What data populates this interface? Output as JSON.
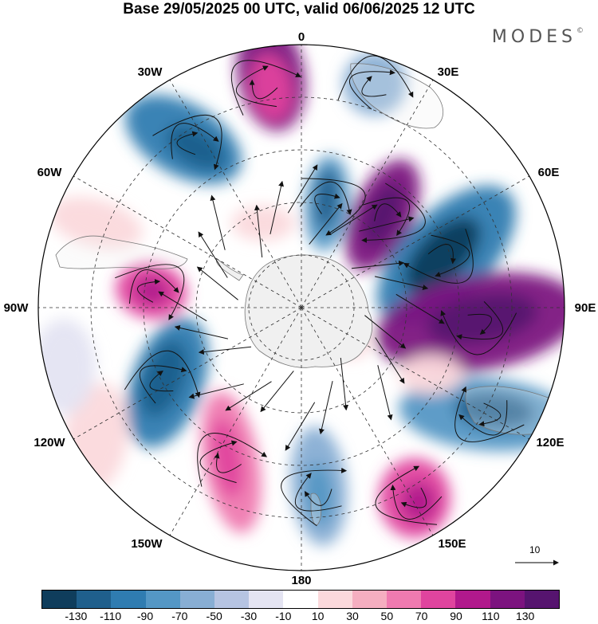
{
  "title": "Base 29/05/2025 00 UTC, valid 06/06/2025 12 UTC",
  "brand": "MODES",
  "brand_mark": "©",
  "longitude_labels": [
    "0",
    "30E",
    "60E",
    "90E",
    "120E",
    "150E",
    "180",
    "150W",
    "120W",
    "90W",
    "60W",
    "30W"
  ],
  "reference_vector_label": "10",
  "colorbar": {
    "colors": [
      "#0f3d5c",
      "#1f5f8c",
      "#2f7cb1",
      "#5497c5",
      "#88aed4",
      "#b6c4e2",
      "#e4e4f2",
      "#ffffff",
      "#fbd9dc",
      "#f5aec0",
      "#ef7ab0",
      "#e0449e",
      "#b1198c",
      "#7c137f",
      "#56146f"
    ],
    "tick_labels": [
      "-130",
      "-110",
      "-90",
      "-70",
      "-50",
      "-30",
      "-10",
      "10",
      "30",
      "50",
      "70",
      "90",
      "110",
      "130"
    ]
  },
  "colors": {
    "land": "#f0f0f0",
    "coast": "#777777",
    "grid": "#333333"
  }
}
